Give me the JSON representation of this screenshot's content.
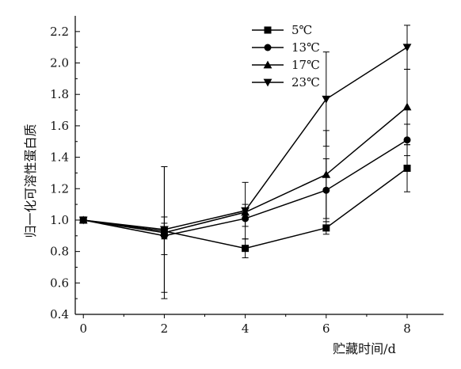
{
  "chart_data": {
    "type": "line",
    "xlabel": "贮藏时间/d",
    "ylabel": "归一化可溶性蛋白质",
    "x": [
      0,
      2,
      4,
      6,
      8
    ],
    "x_ticks": [
      "0",
      "2",
      "4",
      "6",
      "8"
    ],
    "xlim": [
      -0.2,
      8.9
    ],
    "ylim": [
      0.4,
      2.3
    ],
    "y_ticks": [
      "0.4",
      "0.6",
      "0.8",
      "1.0",
      "1.2",
      "1.4",
      "1.6",
      "1.8",
      "2.0",
      "2.2"
    ],
    "grid": false,
    "legend_position": "top-right",
    "series": [
      {
        "name": "5℃",
        "marker": "square",
        "values": [
          1.0,
          0.93,
          0.82,
          0.95,
          1.33
        ],
        "errors": [
          0.02,
          0.05,
          0.06,
          0.04,
          0.15
        ]
      },
      {
        "name": "13℃",
        "marker": "circle",
        "values": [
          1.0,
          0.9,
          1.01,
          1.19,
          1.51
        ],
        "errors": [
          0.02,
          0.12,
          0.05,
          0.2,
          0.1
        ]
      },
      {
        "name": "17℃",
        "marker": "triangle-up",
        "values": [
          1.0,
          0.92,
          1.05,
          1.29,
          1.72
        ],
        "errors": [
          0.02,
          0.42,
          0.05,
          0.28,
          0.24
        ]
      },
      {
        "name": "23℃",
        "marker": "triangle-down",
        "values": [
          1.0,
          0.94,
          1.06,
          1.77,
          2.1
        ],
        "errors": [
          0.02,
          0.4,
          0.18,
          0.3,
          0.14
        ]
      }
    ]
  }
}
